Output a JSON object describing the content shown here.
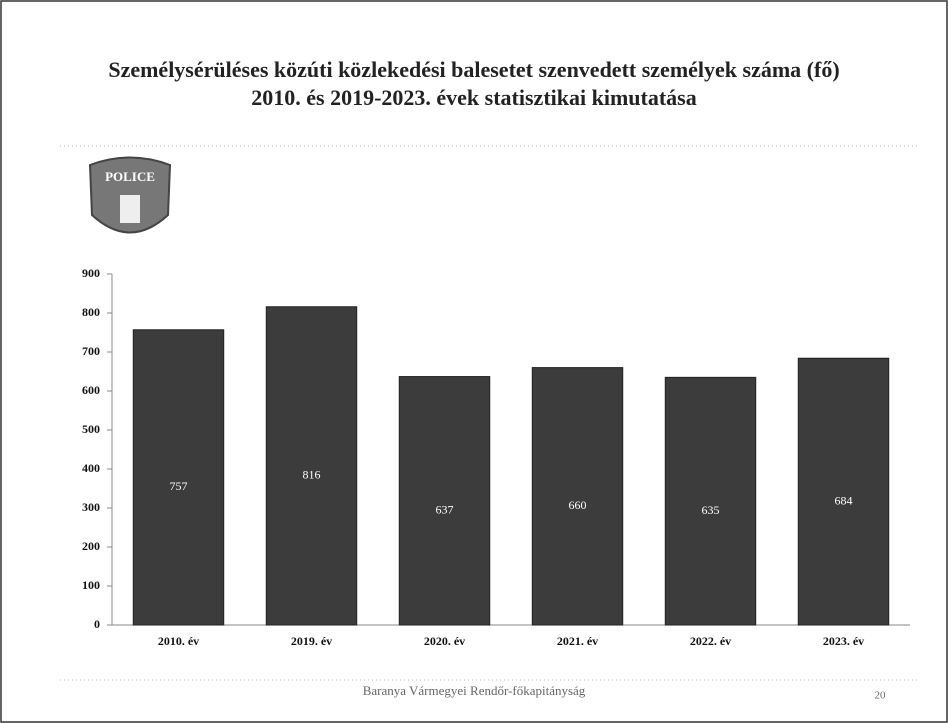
{
  "chart_data": {
    "type": "bar",
    "title": "Személysérüléses közúti közlekedési balesetet szenvedett személyek száma (fő)",
    "subtitle": "2010. és 2019-2023. évek statisztikai kimutatása",
    "categories": [
      "2010. év",
      "2019. év",
      "2020. év",
      "2021. év",
      "2022. év",
      "2023. év"
    ],
    "values": [
      757,
      816,
      637,
      660,
      635,
      684
    ],
    "color": "#3c3c3c",
    "ylim": [
      0,
      900
    ],
    "yticks": [
      0,
      100,
      200,
      300,
      400,
      500,
      600,
      700,
      800,
      900
    ]
  },
  "logo": "POLICE",
  "footer": "Baranya Vármegyei Rendőr-főkapitányság",
  "page_number": "20"
}
